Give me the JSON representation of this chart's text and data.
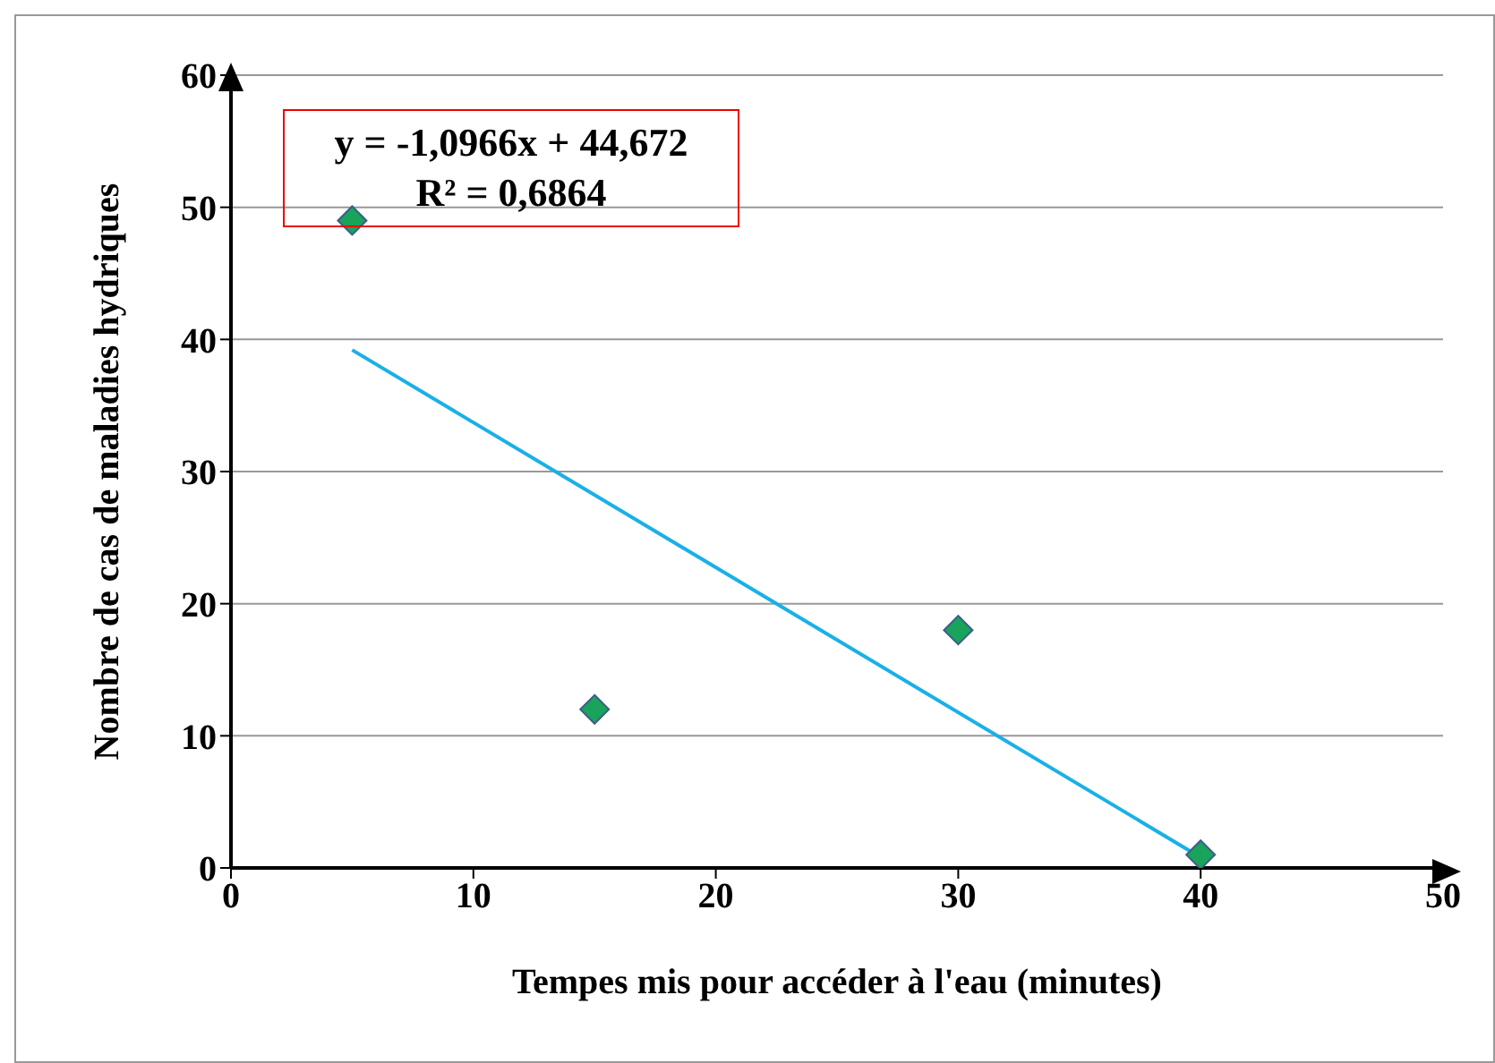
{
  "chart_data": {
    "type": "scatter",
    "xlabel": "Tempes mis pour accéder à l'eau (minutes)",
    "ylabel": "Nombre de cas de maladies hydriques",
    "annotations": [
      "y = -1,0966x + 44,672",
      "R² = 0,6864"
    ],
    "xlim": [
      0,
      50
    ],
    "xticks": [
      0,
      10,
      20,
      30,
      40,
      50
    ],
    "ylim": [
      0,
      60
    ],
    "yticks": [
      0,
      10,
      20,
      30,
      40,
      50,
      60
    ],
    "grid": "y",
    "series": [
      {
        "color": "#1aa35a",
        "marker": "diamond",
        "x": [
          5,
          15,
          30,
          40
        ],
        "values": [
          49,
          12,
          18,
          1
        ]
      },
      {
        "type": "line",
        "color": "#1ab0e6",
        "x": [
          5,
          40
        ],
        "values": [
          39.2,
          0.8
        ]
      }
    ]
  }
}
